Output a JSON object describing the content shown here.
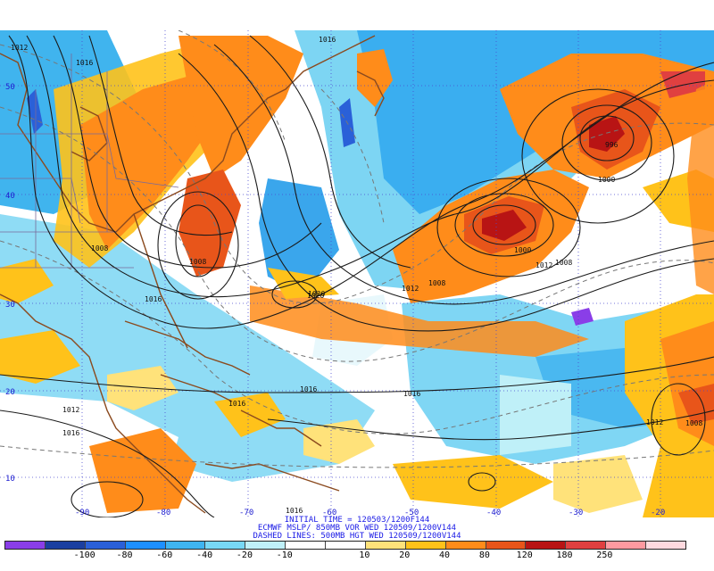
{
  "caption": {
    "line1": "INITIAL TIME = 120503/1200F144",
    "line2": "ECMWF MSLP/ 850MB VOR WED 120509/1200V144",
    "line3": "DASHED LINES: 500MB HGT WED 120509/1200V144"
  },
  "colorbar": {
    "colors": [
      "#8a3ee8",
      "#1b3fa0",
      "#2a60d8",
      "#1e90ff",
      "#3fb4f0",
      "#78d8f5",
      "#bff0f8",
      "#ffffff",
      "#ffffff",
      "#ffe27a",
      "#ffc21a",
      "#ff8c1a",
      "#e8551a",
      "#b81414",
      "#e04040",
      "#ff9aa0",
      "#ffd9df"
    ],
    "labels": [
      "-100",
      "-80",
      "-60",
      "-40",
      "-20",
      "-10",
      "10",
      "20",
      "40",
      "80",
      "120",
      "180",
      "250"
    ]
  },
  "isobar_labels": [
    "1012",
    "1016",
    "1008",
    "1020",
    "1016",
    "1016",
    "1012",
    "1016",
    "1008",
    "1016",
    "1020",
    "1012",
    "1008",
    "1000",
    "1008",
    "1000",
    "996",
    "1016",
    "1016",
    "1012",
    "1008",
    "1012",
    "1016"
  ],
  "lon_labels": [
    "-90",
    "-80",
    "-70",
    "-60",
    "-50",
    "-40",
    "-30",
    "-20"
  ],
  "lat_labels": [
    "50",
    "40",
    "30",
    "20",
    "10"
  ]
}
